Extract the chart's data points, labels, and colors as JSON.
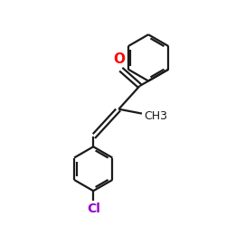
{
  "background_color": "#ffffff",
  "bond_color": "#1a1a1a",
  "oxygen_color": "#ff0000",
  "chlorine_color": "#9900cc",
  "line_width": 1.6,
  "figsize": [
    2.5,
    2.5
  ],
  "dpi": 100,
  "ch3_label": "CH3",
  "o_label": "O",
  "cl_label": "Cl",
  "xlim": [
    0,
    10
  ],
  "ylim": [
    0,
    10
  ]
}
